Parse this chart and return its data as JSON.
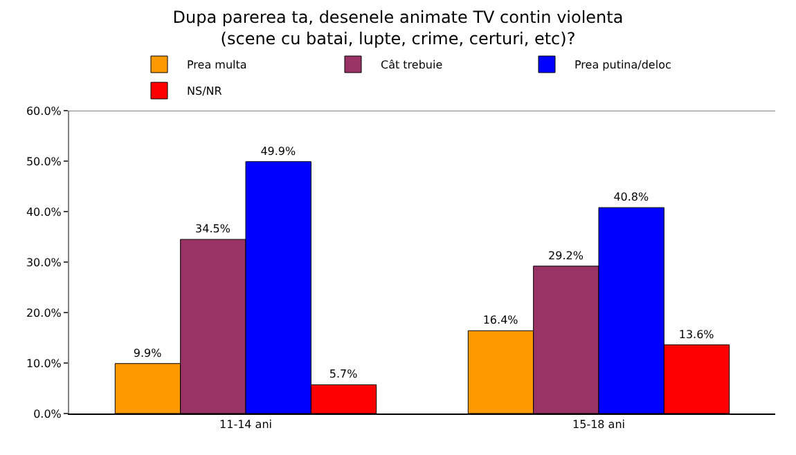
{
  "chart_data": {
    "type": "bar",
    "title": "Dupa parerea ta, desenele animate TV contin violenta\n(scene cu batai, lupte, crime, certuri, etc)?",
    "categories": [
      "11-14 ani",
      "15-18 ani"
    ],
    "series": [
      {
        "name": "Prea multa",
        "color": "#ff9900",
        "values": [
          9.9,
          16.4
        ],
        "value_labels": [
          "9.9%",
          "16.4%"
        ]
      },
      {
        "name": "Cât trebuie",
        "color": "#993366",
        "values": [
          34.5,
          29.2
        ],
        "value_labels": [
          "34.5%",
          "29.2%"
        ]
      },
      {
        "name": "Prea putina/deloc",
        "color": "#0000ff",
        "values": [
          49.9,
          40.8
        ],
        "value_labels": [
          "49.9%",
          "40.8%"
        ]
      },
      {
        "name": "NS/NR",
        "color": "#ff0000",
        "values": [
          5.7,
          13.6
        ],
        "value_labels": [
          "5.7%",
          "13.6%"
        ]
      }
    ],
    "ylim": [
      0,
      60
    ],
    "yticks": [
      {
        "value": 0,
        "label": "0.0%"
      },
      {
        "value": 10,
        "label": "10.0%"
      },
      {
        "value": 20,
        "label": "20.0%"
      },
      {
        "value": 30,
        "label": "30.0%"
      },
      {
        "value": 40,
        "label": "40.0%"
      },
      {
        "value": 50,
        "label": "50.0%"
      },
      {
        "value": 60,
        "label": "60.0%"
      }
    ],
    "legend": "top"
  }
}
